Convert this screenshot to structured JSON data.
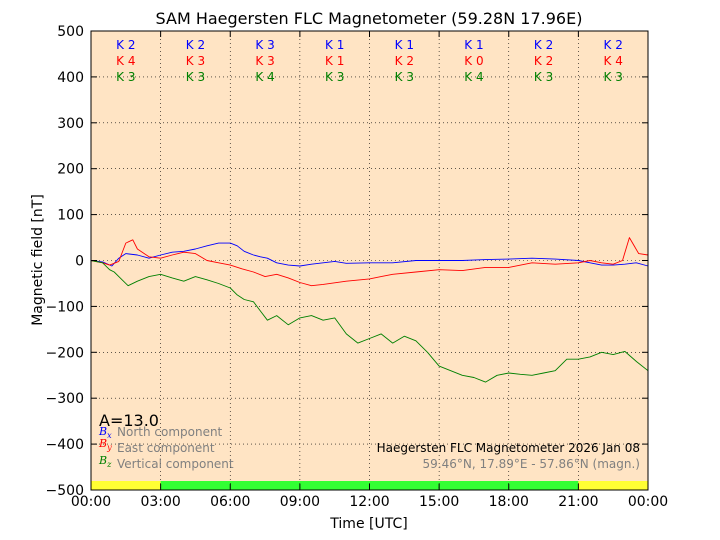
{
  "chart_data": {
    "type": "line",
    "title": "SAM Haegersten FLC Magnetometer (59.28N 17.96E)",
    "xlabel": "Time [UTC]",
    "ylabel": "Magnetic field [nT]",
    "ylim": [
      -500,
      500
    ],
    "xlim": [
      0,
      24
    ],
    "grid": true,
    "x_ticks": [
      "00:00",
      "03:00",
      "06:00",
      "09:00",
      "12:00",
      "15:00",
      "18:00",
      "21:00",
      "00:00"
    ],
    "y_ticks": [
      500,
      400,
      300,
      200,
      100,
      0,
      -100,
      -200,
      -300,
      -400,
      -500
    ],
    "a_index": "A=13.0",
    "background_color": "#ffe4c4",
    "legend_location": "bottom-left",
    "legend": [
      {
        "symbol": "B",
        "sub": "x",
        "label": "North component",
        "color": "#0000ff"
      },
      {
        "symbol": "B",
        "sub": "y",
        "label": "East component",
        "color": "#ff0000"
      },
      {
        "symbol": "B",
        "sub": "z",
        "label": "Vertical component",
        "color": "#008000"
      }
    ],
    "station_caption": "Haegersten FLC Magnetometer 2026 Jan 08",
    "coords_caption": "59.46°N, 17.89°E - 57.86°N (magn.)",
    "k_indices": {
      "blue": [
        "K 2",
        "K 2",
        "K 3",
        "K 1",
        "K 1",
        "K 1",
        "K 2",
        "K 2"
      ],
      "red": [
        "K 4",
        "K 3",
        "K 3",
        "K 1",
        "K 2",
        "K 0",
        "K 2",
        "K 4"
      ],
      "green": [
        "K 3",
        "K 3",
        "K 4",
        "K 3",
        "K 3",
        "K 4",
        "K 3",
        "K 3"
      ]
    },
    "status_bar": [
      {
        "from": 0,
        "to": 3,
        "color": "#ffff33"
      },
      {
        "from": 3,
        "to": 21,
        "color": "#33ff33"
      },
      {
        "from": 21,
        "to": 24,
        "color": "#ffff33"
      }
    ],
    "series": [
      {
        "name": "North component",
        "color": "#0000ff",
        "x": [
          0,
          0.5,
          0.9,
          1.2,
          1.5,
          2.0,
          2.5,
          3.0,
          3.5,
          4.0,
          4.5,
          5.0,
          5.5,
          6.0,
          6.3,
          6.6,
          7.0,
          7.3,
          7.6,
          8.0,
          8.5,
          9.0,
          9.5,
          10.0,
          10.5,
          11.0,
          12.0,
          13.0,
          14.0,
          15.0,
          16.0,
          17.0,
          18.0,
          19.0,
          20.0,
          21.0,
          21.5,
          22.0,
          22.5,
          23.0,
          23.5,
          24.0
        ],
        "y": [
          0,
          -3,
          -12,
          5,
          15,
          12,
          5,
          12,
          18,
          20,
          25,
          32,
          38,
          38,
          32,
          20,
          12,
          8,
          5,
          -5,
          -10,
          -12,
          -8,
          -5,
          -2,
          -6,
          -5,
          -5,
          0,
          0,
          0,
          2,
          3,
          5,
          3,
          0,
          -5,
          -10,
          -10,
          -8,
          -5,
          -12
        ]
      },
      {
        "name": "East component",
        "color": "#ff0000",
        "x": [
          0,
          0.5,
          0.8,
          1.2,
          1.5,
          1.8,
          2.0,
          2.5,
          3.0,
          3.5,
          4.0,
          4.5,
          5.0,
          5.5,
          6.0,
          6.5,
          7.0,
          7.5,
          8.0,
          8.5,
          9.0,
          9.5,
          10.0,
          11.0,
          12.0,
          12.5,
          13.0,
          14.0,
          15.0,
          16.0,
          17.0,
          18.0,
          19.0,
          20.0,
          21.0,
          21.5,
          22.0,
          22.5,
          22.9,
          23.2,
          23.6,
          24.0
        ],
        "y": [
          0,
          -5,
          -10,
          -2,
          38,
          45,
          25,
          8,
          5,
          12,
          18,
          15,
          0,
          -5,
          -10,
          -18,
          -25,
          -35,
          -30,
          -38,
          -48,
          -55,
          -52,
          -45,
          -40,
          -35,
          -30,
          -25,
          -20,
          -22,
          -15,
          -15,
          -5,
          -8,
          -5,
          0,
          -5,
          -8,
          0,
          50,
          15,
          12
        ]
      },
      {
        "name": "Vertical component",
        "color": "#008000",
        "x": [
          0,
          0.5,
          0.8,
          1.0,
          1.3,
          1.6,
          2.0,
          2.5,
          3.0,
          3.5,
          4.0,
          4.5,
          5.0,
          5.5,
          6.0,
          6.3,
          6.6,
          7.0,
          7.3,
          7.6,
          8.0,
          8.5,
          9.0,
          9.5,
          10.0,
          10.5,
          11.0,
          11.5,
          12.0,
          12.5,
          13.0,
          13.5,
          14.0,
          14.5,
          15.0,
          15.5,
          16.0,
          16.5,
          17.0,
          17.5,
          18.0,
          18.5,
          19.0,
          19.5,
          20.0,
          20.5,
          21.0,
          21.5,
          22.0,
          22.5,
          23.0,
          23.5,
          24.0
        ],
        "y": [
          0,
          -5,
          -20,
          -25,
          -40,
          -55,
          -45,
          -35,
          -30,
          -38,
          -45,
          -35,
          -42,
          -50,
          -60,
          -75,
          -85,
          -90,
          -110,
          -130,
          -120,
          -140,
          -125,
          -120,
          -130,
          -125,
          -160,
          -180,
          -170,
          -160,
          -180,
          -165,
          -175,
          -200,
          -230,
          -240,
          -250,
          -255,
          -265,
          -250,
          -245,
          -248,
          -250,
          -245,
          -240,
          -215,
          -215,
          -210,
          -200,
          -205,
          -198,
          -220,
          -240
        ]
      }
    ]
  }
}
